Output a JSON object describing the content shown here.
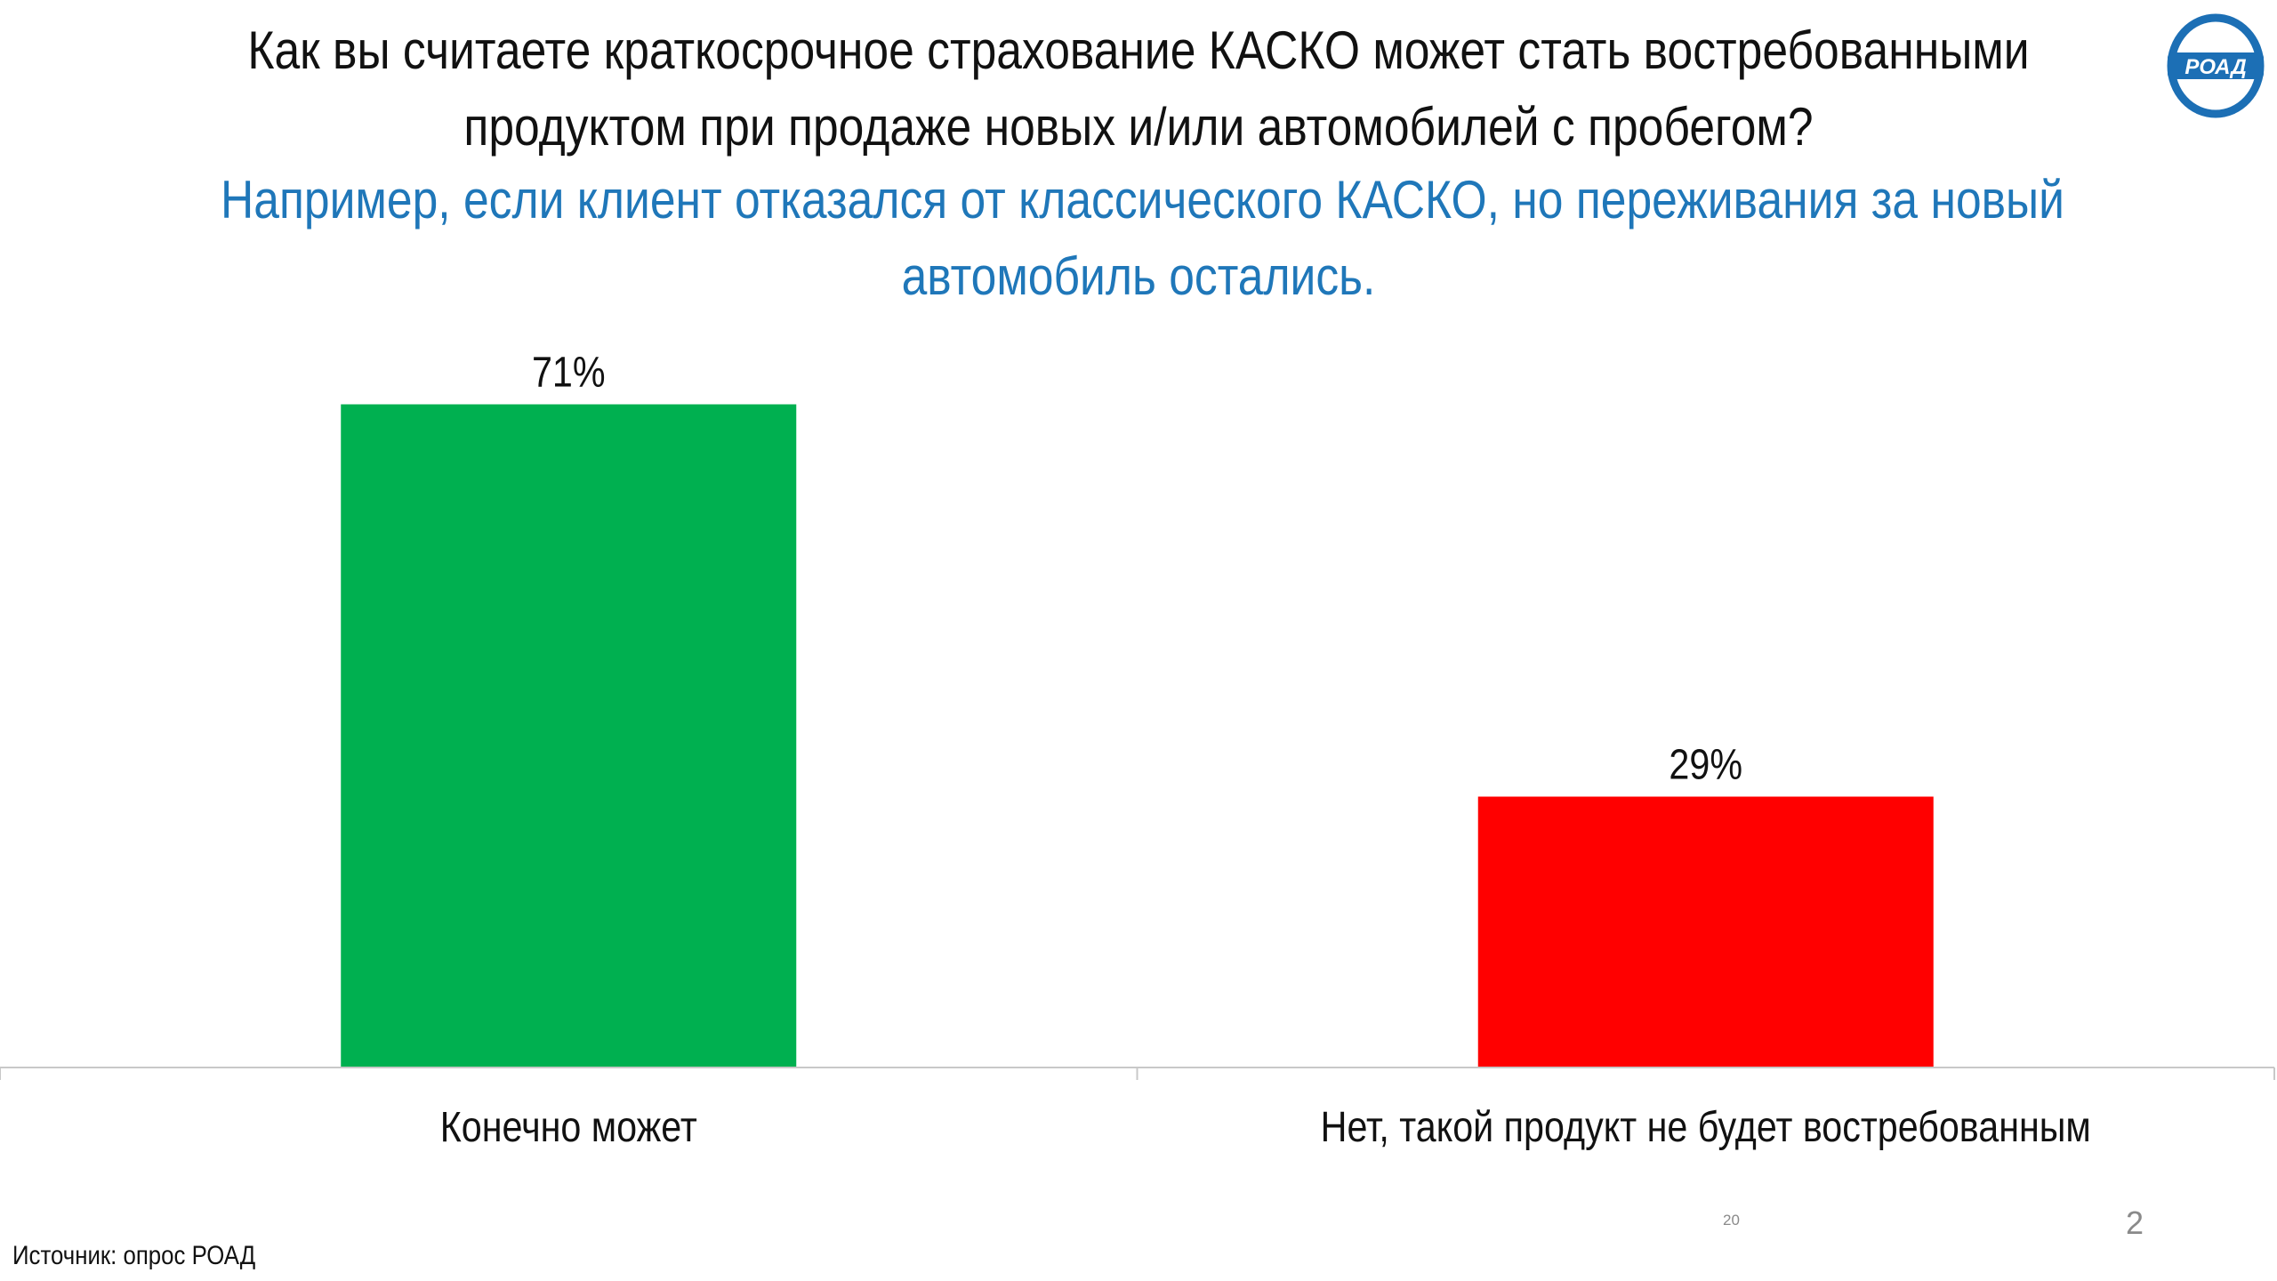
{
  "title_lines": [
    "Как вы считаете краткосрочное страхование КАСКО может стать востребованными",
    "продуктом при продаже новых и/или автомобилей с пробегом?"
  ],
  "subtitle_lines": [
    "Например, если клиент отказался от классического КАСКО, но переживания за новый",
    "автомобиль остались."
  ],
  "subtitle_color": "#1f77b9",
  "logo": {
    "text": "РОАД",
    "icon": "road-logo-icon",
    "color": "#1c6fb5"
  },
  "chart_data": {
    "type": "bar",
    "categories": [
      "Конечно может",
      "Нет, такой продукт не будет востребованным"
    ],
    "values": [
      71,
      29
    ],
    "data_labels": [
      "71%",
      "29%"
    ],
    "colors": [
      "#00b050",
      "#ff0000"
    ],
    "ylim": [
      0,
      100
    ],
    "grid": false,
    "legend": "none"
  },
  "footer": {
    "source": "Источник: опрос РОАД",
    "small_number": "20",
    "page_number": "2"
  }
}
